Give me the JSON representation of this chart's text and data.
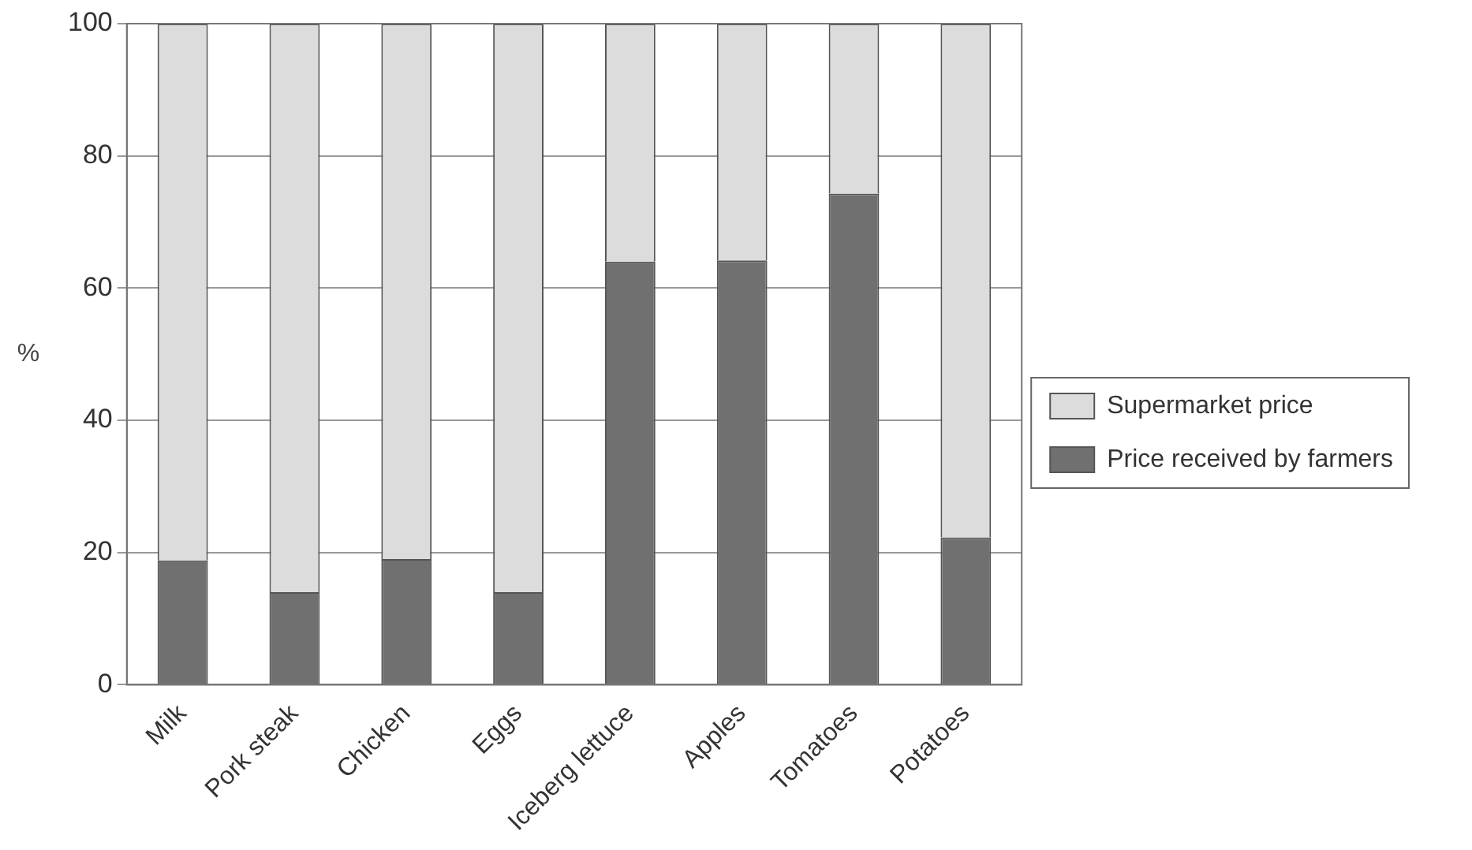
{
  "chart_data": {
    "type": "bar",
    "stacked": true,
    "ylabel": "%",
    "categories": [
      "Milk",
      "Pork steak",
      "Chicken",
      "Eggs",
      "Iceberg lettuce",
      "Apples",
      "Tomatoes",
      "Potatoes"
    ],
    "series": [
      {
        "name": "Price received by farmers",
        "color": "#707070",
        "values": [
          18.8,
          14,
          19,
          14,
          64,
          64.2,
          74.3,
          22.3
        ]
      },
      {
        "name": "Supermarket price",
        "color": "#dcdcdc",
        "values": [
          81.2,
          86,
          81,
          86,
          36,
          35.8,
          25.7,
          77.7
        ]
      }
    ],
    "ylim": [
      0,
      100
    ],
    "yticks": [
      0,
      20,
      40,
      60,
      80,
      100
    ],
    "grid": "y",
    "legend": "right"
  }
}
